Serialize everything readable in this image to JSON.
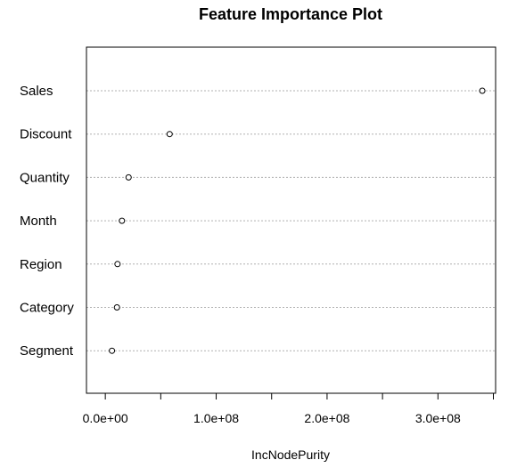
{
  "chart_data": {
    "type": "scatter",
    "title": "Feature Importance Plot",
    "xlabel": "IncNodePurity",
    "ylabel": "",
    "categories": [
      "Sales",
      "Discount",
      "Quantity",
      "Month",
      "Region",
      "Category",
      "Segment"
    ],
    "values": [
      340000000,
      58000000,
      21000000,
      15000000,
      11000000,
      10500000,
      6000000
    ],
    "xlim": [
      -17000000,
      352000000
    ],
    "x_ticks": [
      0,
      50000000,
      100000000,
      150000000,
      200000000,
      250000000,
      300000000,
      350000000
    ],
    "x_tick_labels": [
      {
        "value": 0,
        "label": "0.0e+00"
      },
      {
        "value": 100000000,
        "label": "1.0e+08"
      },
      {
        "value": 200000000,
        "label": "2.0e+08"
      },
      {
        "value": 300000000,
        "label": "3.0e+08"
      }
    ],
    "grid": "dotted horizontal guide lines per category",
    "legend": "none"
  }
}
